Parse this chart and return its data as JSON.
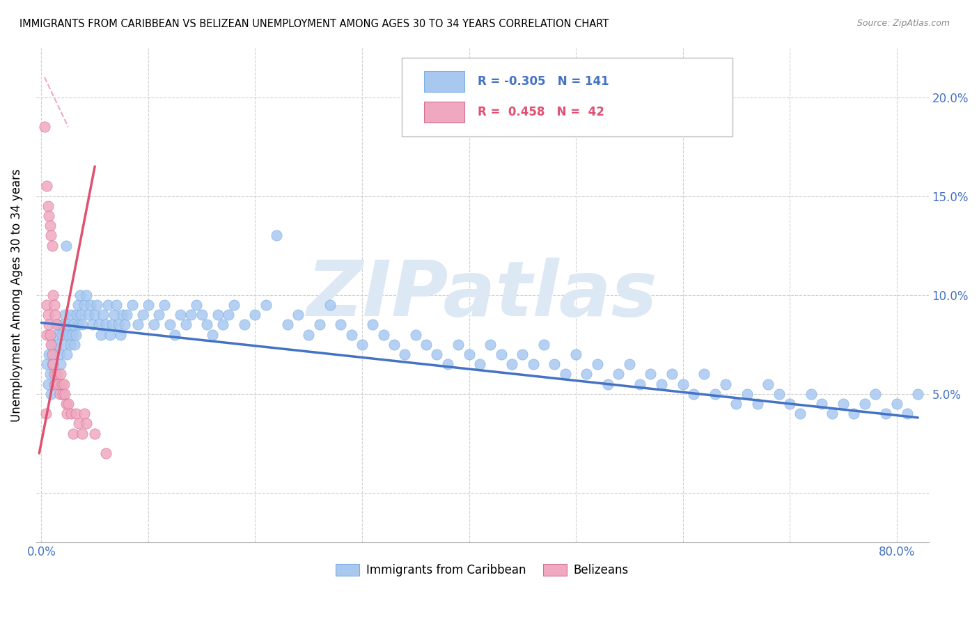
{
  "title": "IMMIGRANTS FROM CARIBBEAN VS BELIZEAN UNEMPLOYMENT AMONG AGES 30 TO 34 YEARS CORRELATION CHART",
  "source": "Source: ZipAtlas.com",
  "ylabel": "Unemployment Among Ages 30 to 34 years",
  "right_yticks": [
    "20.0%",
    "15.0%",
    "10.0%",
    "5.0%"
  ],
  "right_ytick_vals": [
    0.2,
    0.15,
    0.1,
    0.05
  ],
  "watermark": "ZIPatlas",
  "blue_scatter_x": [
    0.005,
    0.006,
    0.007,
    0.008,
    0.009,
    0.01,
    0.01,
    0.011,
    0.012,
    0.013,
    0.014,
    0.015,
    0.016,
    0.017,
    0.018,
    0.019,
    0.02,
    0.021,
    0.022,
    0.023,
    0.024,
    0.025,
    0.026,
    0.027,
    0.028,
    0.029,
    0.03,
    0.031,
    0.032,
    0.033,
    0.034,
    0.035,
    0.036,
    0.037,
    0.038,
    0.04,
    0.042,
    0.044,
    0.046,
    0.048,
    0.05,
    0.052,
    0.054,
    0.056,
    0.058,
    0.06,
    0.062,
    0.064,
    0.066,
    0.068,
    0.07,
    0.072,
    0.074,
    0.076,
    0.078,
    0.08,
    0.085,
    0.09,
    0.095,
    0.1,
    0.105,
    0.11,
    0.115,
    0.12,
    0.125,
    0.13,
    0.135,
    0.14,
    0.145,
    0.15,
    0.155,
    0.16,
    0.165,
    0.17,
    0.175,
    0.18,
    0.19,
    0.2,
    0.21,
    0.22,
    0.23,
    0.24,
    0.25,
    0.26,
    0.27,
    0.28,
    0.29,
    0.3,
    0.31,
    0.32,
    0.33,
    0.34,
    0.35,
    0.36,
    0.37,
    0.38,
    0.39,
    0.4,
    0.41,
    0.42,
    0.43,
    0.44,
    0.45,
    0.46,
    0.47,
    0.48,
    0.49,
    0.5,
    0.51,
    0.52,
    0.53,
    0.54,
    0.55,
    0.56,
    0.57,
    0.58,
    0.59,
    0.6,
    0.61,
    0.62,
    0.63,
    0.64,
    0.65,
    0.66,
    0.67,
    0.68,
    0.69,
    0.7,
    0.71,
    0.72,
    0.73,
    0.74,
    0.75,
    0.76,
    0.77,
    0.78,
    0.79,
    0.8,
    0.81,
    0.82,
    0.023
  ],
  "blue_scatter_y": [
    0.065,
    0.055,
    0.07,
    0.06,
    0.05,
    0.075,
    0.065,
    0.07,
    0.055,
    0.06,
    0.08,
    0.075,
    0.085,
    0.07,
    0.065,
    0.08,
    0.085,
    0.075,
    0.09,
    0.08,
    0.07,
    0.085,
    0.08,
    0.075,
    0.09,
    0.08,
    0.085,
    0.075,
    0.08,
    0.09,
    0.095,
    0.085,
    0.1,
    0.09,
    0.085,
    0.095,
    0.1,
    0.09,
    0.095,
    0.085,
    0.09,
    0.095,
    0.085,
    0.08,
    0.09,
    0.085,
    0.095,
    0.08,
    0.085,
    0.09,
    0.095,
    0.085,
    0.08,
    0.09,
    0.085,
    0.09,
    0.095,
    0.085,
    0.09,
    0.095,
    0.085,
    0.09,
    0.095,
    0.085,
    0.08,
    0.09,
    0.085,
    0.09,
    0.095,
    0.09,
    0.085,
    0.08,
    0.09,
    0.085,
    0.09,
    0.095,
    0.085,
    0.09,
    0.095,
    0.13,
    0.085,
    0.09,
    0.08,
    0.085,
    0.095,
    0.085,
    0.08,
    0.075,
    0.085,
    0.08,
    0.075,
    0.07,
    0.08,
    0.075,
    0.07,
    0.065,
    0.075,
    0.07,
    0.065,
    0.075,
    0.07,
    0.065,
    0.07,
    0.065,
    0.075,
    0.065,
    0.06,
    0.07,
    0.06,
    0.065,
    0.055,
    0.06,
    0.065,
    0.055,
    0.06,
    0.055,
    0.06,
    0.055,
    0.05,
    0.06,
    0.05,
    0.055,
    0.045,
    0.05,
    0.045,
    0.055,
    0.05,
    0.045,
    0.04,
    0.05,
    0.045,
    0.04,
    0.045,
    0.04,
    0.045,
    0.05,
    0.04,
    0.045,
    0.04,
    0.05,
    0.125
  ],
  "pink_scatter_x": [
    0.003,
    0.004,
    0.005,
    0.005,
    0.005,
    0.006,
    0.006,
    0.007,
    0.007,
    0.008,
    0.008,
    0.009,
    0.009,
    0.01,
    0.01,
    0.011,
    0.011,
    0.012,
    0.012,
    0.013,
    0.013,
    0.014,
    0.015,
    0.016,
    0.017,
    0.018,
    0.019,
    0.02,
    0.021,
    0.022,
    0.023,
    0.024,
    0.025,
    0.028,
    0.03,
    0.032,
    0.035,
    0.038,
    0.04,
    0.042,
    0.05,
    0.06
  ],
  "pink_scatter_y": [
    0.185,
    0.04,
    0.155,
    0.095,
    0.08,
    0.145,
    0.09,
    0.14,
    0.085,
    0.135,
    0.08,
    0.13,
    0.075,
    0.125,
    0.07,
    0.1,
    0.065,
    0.095,
    0.06,
    0.09,
    0.055,
    0.085,
    0.06,
    0.055,
    0.05,
    0.06,
    0.055,
    0.05,
    0.055,
    0.05,
    0.045,
    0.04,
    0.045,
    0.04,
    0.03,
    0.04,
    0.035,
    0.03,
    0.04,
    0.035,
    0.03,
    0.02
  ],
  "blue_line_x": [
    0.0,
    0.82
  ],
  "blue_line_y": [
    0.086,
    0.038
  ],
  "pink_line_x": [
    -0.002,
    0.05
  ],
  "pink_line_y": [
    0.02,
    0.165
  ],
  "xlim": [
    -0.005,
    0.83
  ],
  "ylim": [
    -0.025,
    0.225
  ],
  "axis_color": "#4472c4",
  "scatter_blue_color": "#a8c8f0",
  "scatter_pink_color": "#f0a8c0",
  "trend_blue_color": "#4472c4",
  "trend_pink_color": "#e05070",
  "trend_pink_dashed_color": "#f0a8c0",
  "grid_color": "#d0d0d0",
  "watermark_color": "#dde8f5",
  "legend_r1_color": "#4472c4",
  "legend_r2_color": "#e05070",
  "legend_r1_text": "R = -0.305   N = 141",
  "legend_r2_text": "R =  0.458   N =  42",
  "legend_label1": "Immigrants from Caribbean",
  "legend_label2": "Belizeans"
}
